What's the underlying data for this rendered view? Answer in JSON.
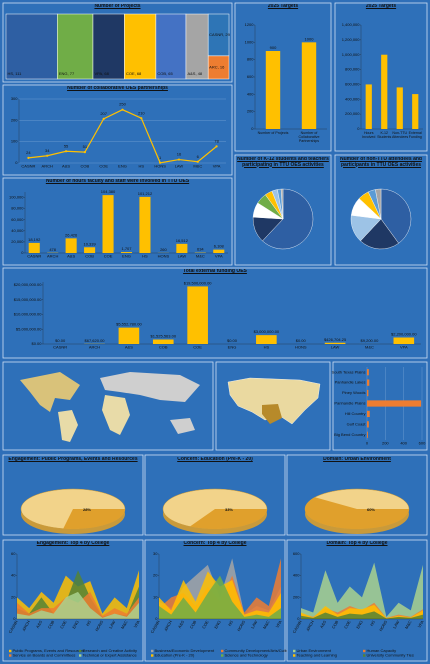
{
  "chart_data": [
    {
      "type": "treemap",
      "title": "Number of Projects",
      "categories": [
        "HS",
        "ENG",
        "VPA",
        "COE",
        "COB",
        "A&S",
        "CASNR",
        "ARCH"
      ],
      "values": [
        111,
        77,
        68,
        68,
        65,
        48,
        29,
        16
      ],
      "value_labels": [
        "HS, 111",
        "ENG, 77",
        "VPA, 68",
        "COE, 68",
        "COB, 65",
        "A&S, 48",
        "CASNR, 29",
        "ARC, 16"
      ],
      "colors": [
        "#2e5fa3",
        "#70ad47",
        "#1f3864",
        "#ffc000",
        "#4472c4",
        "#a5a5a5",
        "#2e75b6",
        "#ed7d31"
      ]
    },
    {
      "type": "bar",
      "title": "2025 Targets",
      "categories": [
        "Number of Projects",
        "Number of Collaborative Partnerships"
      ],
      "values": [
        900,
        1000
      ],
      "value_labels": [
        "900",
        "1000"
      ],
      "color": "#ffc000",
      "ylim": [
        0,
        1200
      ],
      "yticks": [
        0,
        200,
        400,
        600,
        800,
        1000,
        1200
      ],
      "grid": false
    },
    {
      "type": "bar",
      "title": "2025 Targets",
      "categories": [
        "Hours Involved",
        "K-12 Students",
        "Non-TTU Attendees",
        "External Funding"
      ],
      "values": [
        600000,
        1000000,
        560000,
        470000
      ],
      "color": "#ffc000",
      "ylim": [
        0,
        1400000
      ],
      "yticks": [
        0,
        {
          "value": 200000,
          "label": "200,000"
        },
        {
          "value": 400000,
          "label": "400,000"
        },
        {
          "value": 600000,
          "label": "600,000"
        },
        {
          "value": 800000,
          "label": "800,000"
        },
        {
          "value": 1000000,
          "label": "1,000,000"
        },
        {
          "value": 1200000,
          "label": "1,200,000"
        },
        {
          "value": 1400000,
          "label": "1,400,000"
        }
      ],
      "grid": false
    },
    {
      "type": "line",
      "title": "Number of collaborative OES partnerships",
      "categories": [
        "CASNR",
        "ARCH",
        "A&S",
        "COB",
        "COE",
        "ENG",
        "HS",
        "HONS",
        "LAW",
        "M&C",
        "VPA"
      ],
      "values": [
        24,
        34,
        55,
        51,
        207,
        250,
        210,
        1,
        16,
        6,
        78
      ],
      "color": "#ffc000",
      "ylim": [
        0,
        300
      ],
      "yticks": [
        0,
        100,
        200,
        300
      ],
      "grid": true
    },
    {
      "type": "bar",
      "title": "Number of hours faculty and staff were involved in TTU OES",
      "categories": [
        "CASNR",
        "ARCH",
        "A&S",
        "COB",
        "COE",
        "ENG",
        "HS",
        "HONS",
        "LAW",
        "M&C",
        "VPA"
      ],
      "values": [
        18192,
        478,
        26426,
        10339,
        104380,
        1707,
        101212,
        260,
        16512,
        634,
        6108
      ],
      "value_labels": [
        "18,192",
        "478",
        "26,426",
        "10,339",
        "104,380",
        "1,707",
        "101,212",
        "260",
        "16,512",
        "634",
        "6,108"
      ],
      "color": "#ffc000",
      "ylim": [
        0,
        110000
      ],
      "yticks": [
        0,
        {
          "value": 20000,
          "label": "20,000"
        },
        {
          "value": 40000,
          "label": "40,000"
        },
        {
          "value": 60000,
          "label": "60,000"
        },
        {
          "value": 80000,
          "label": "80,000"
        },
        {
          "value": 100000,
          "label": "100,000"
        }
      ],
      "grid": false
    },
    {
      "type": "pie",
      "title": "Number of K-12 students and teachers participating in TTU OES activities",
      "values": [
        62,
        14,
        8,
        6,
        4,
        3,
        2,
        1
      ],
      "colors": [
        "#2e5fa3",
        "#1f3864",
        "#ffffff",
        "#70ad47",
        "#ffc000",
        "#9dc3e6",
        "#5b9bd5",
        "#a5a5a5"
      ]
    },
    {
      "type": "pie",
      "title": "Number of non-TTU attendees and participants in TTU OES activities",
      "values": [
        40,
        22,
        15,
        10,
        6,
        4,
        3
      ],
      "colors": [
        "#2e5fa3",
        "#1f3864",
        "#9dc3e6",
        "#ffffff",
        "#ffc000",
        "#5b9bd5",
        "#a5a5a5"
      ]
    },
    {
      "type": "bar",
      "title": "Total external funding OES",
      "categories": [
        "CASNR",
        "ARCH",
        "A&S",
        "COB",
        "COE",
        "ENG",
        "HS",
        "HONS",
        "LAW",
        "M&C",
        "VPA"
      ],
      "values": [
        0,
        67620,
        5552780,
        1525563,
        19500000,
        0,
        3000000,
        0,
        426704.25,
        9200,
        2200000
      ],
      "value_labels": [
        "$0.00",
        "$67,620.00",
        "$5,552,780.00",
        "$1,525,563.00",
        "$19,500,000.00",
        "$0.00",
        "$3,000,000.00",
        "$0.00",
        "$426,704.25",
        "$9,200.00",
        "$2,200,000.00"
      ],
      "color": "#ffc000",
      "ylim": [
        0,
        21000000
      ],
      "yticks": [
        {
          "value": 0,
          "label": "$0.00"
        },
        {
          "value": 5000000,
          "label": "$5,000,000.00"
        },
        {
          "value": 10000000,
          "label": "$10,000,000.00"
        },
        {
          "value": 15000000,
          "label": "$15,000,000.00"
        },
        {
          "value": 20000000,
          "label": "$20,000,000.00"
        }
      ],
      "grid": false
    },
    {
      "type": "hbar",
      "categories": [
        "South Texas Plains",
        "Panhandle Lakes",
        "Piney Woods",
        "Panhandle Plains",
        "Hill Country",
        "Gulf Coast",
        "Big Bend Country"
      ],
      "values": [
        20,
        25,
        15,
        590,
        30,
        20,
        10
      ],
      "color": "#ed7d31",
      "xlim": [
        0,
        600
      ],
      "xticks": [
        0,
        200,
        400,
        600
      ]
    },
    {
      "type": "pie",
      "title": "Engagement: Public Programs, Events and Resources",
      "values": [
        28
      ],
      "value_labels": [
        "28%"
      ],
      "color": "#e0a02c"
    },
    {
      "type": "pie",
      "title": "Concern: Education (Pre-K - 20)",
      "values": [
        33
      ],
      "value_labels": [
        "33%"
      ],
      "color": "#e0a02c"
    },
    {
      "type": "pie",
      "title": "Domain: Urban Environment",
      "values": [
        60
      ],
      "value_labels": [
        "60%"
      ],
      "color": "#e0a02c"
    },
    {
      "type": "area",
      "title": "Engagement: Top 4 by College",
      "categories": [
        "CASNR",
        "ARCH",
        "A&S",
        "COB",
        "COE",
        "ENG",
        "HS",
        "HONS",
        "LAW",
        "M&C",
        "VPA"
      ],
      "ylim": [
        0,
        60
      ],
      "yticks": [
        0,
        20,
        40,
        60
      ],
      "series": [
        {
          "name": "Public Programs, Events and Resources",
          "color": "#ffc000",
          "values": [
            20,
            10,
            25,
            15,
            40,
            30,
            35,
            5,
            20,
            10,
            45
          ]
        },
        {
          "name": "Research and Creative Activity",
          "color": "#548235",
          "values": [
            10,
            5,
            20,
            5,
            15,
            45,
            20,
            2,
            5,
            3,
            30
          ]
        },
        {
          "name": "Service on Boards and Committees",
          "color": "#ed7d31",
          "values": [
            15,
            5,
            10,
            10,
            20,
            15,
            25,
            3,
            10,
            5,
            20
          ]
        },
        {
          "name": "Technical or Expert Assistance",
          "color": "#a9d18e",
          "values": [
            5,
            3,
            8,
            5,
            20,
            25,
            10,
            1,
            5,
            2,
            15
          ]
        }
      ]
    },
    {
      "type": "area",
      "title": "Concern: Top 4 by College",
      "categories": [
        "CASNR",
        "ARCH",
        "A&S",
        "COB",
        "COE",
        "ENG",
        "HS",
        "HONS",
        "LAW",
        "M&C",
        "VPA"
      ],
      "ylim": [
        0,
        30
      ],
      "yticks": [
        0,
        10,
        20,
        30
      ],
      "series": [
        {
          "name": "Business/Economic Development",
          "color": "#a5a5a5",
          "values": [
            8,
            5,
            15,
            20,
            25,
            10,
            28,
            2,
            6,
            4,
            15
          ]
        },
        {
          "name": "Community Development/Arts/Culture/Civic Life",
          "color": "#ed7d31",
          "values": [
            5,
            10,
            12,
            6,
            15,
            8,
            20,
            3,
            10,
            6,
            28
          ]
        },
        {
          "name": "Education (Pre-K - 20)",
          "color": "#ffc000",
          "values": [
            10,
            4,
            18,
            8,
            22,
            15,
            18,
            2,
            4,
            3,
            12
          ]
        },
        {
          "name": "Science and Technology",
          "color": "#70ad47",
          "values": [
            6,
            2,
            10,
            3,
            12,
            20,
            8,
            1,
            2,
            1,
            5
          ]
        }
      ]
    },
    {
      "type": "area",
      "title": "Domain: Top 4 by College",
      "categories": [
        "CASNR",
        "ARCH",
        "A&S",
        "COB",
        "COE",
        "ENG",
        "HS",
        "HONS",
        "LAW",
        "M&C",
        "VPA"
      ],
      "ylim": [
        0,
        600
      ],
      "yticks": [
        0,
        200,
        400,
        600
      ],
      "series": [
        {
          "name": "Urban Environment",
          "color": "#a9d18e",
          "values": [
            100,
            60,
            450,
            150,
            300,
            200,
            520,
            20,
            150,
            80,
            500
          ]
        },
        {
          "name": "Human Capacity",
          "color": "#ed7d31",
          "values": [
            50,
            20,
            100,
            60,
            120,
            80,
            150,
            10,
            40,
            20,
            90
          ]
        },
        {
          "name": "Teaching and Learning",
          "color": "#ffc000",
          "values": [
            60,
            15,
            120,
            40,
            100,
            90,
            130,
            8,
            30,
            15,
            80
          ]
        },
        {
          "name": "University Community Ties",
          "color": "#548235",
          "values": [
            30,
            10,
            60,
            20,
            50,
            40,
            70,
            5,
            20,
            10,
            40
          ]
        }
      ]
    }
  ]
}
